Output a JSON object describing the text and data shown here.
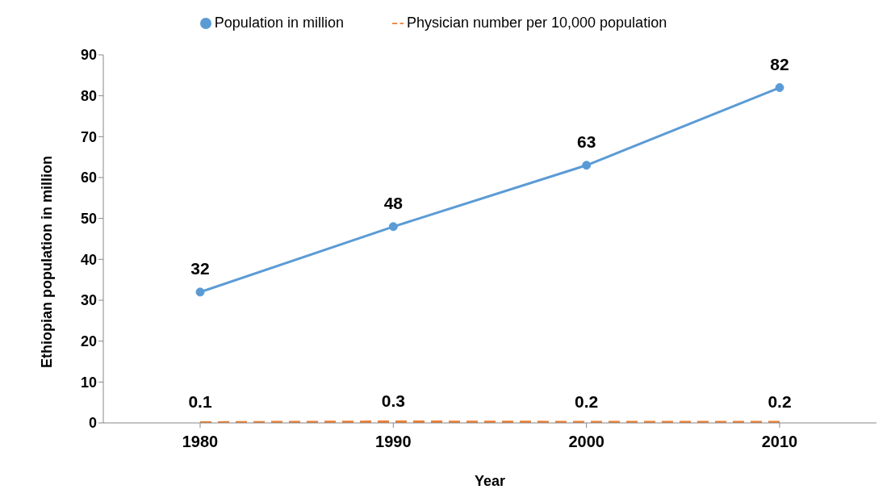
{
  "chart_data": {
    "type": "line",
    "xlabel": "Year",
    "ylabel": "Ethiopian population in million",
    "categories": [
      "1980",
      "1990",
      "2000",
      "2010"
    ],
    "series": [
      {
        "name": "Population in million",
        "color": "#5b9bd5",
        "values": [
          32,
          48,
          63,
          82
        ],
        "marker": "circle",
        "line_style": "solid"
      },
      {
        "name": "Physician number per 10,000 population",
        "color": "#ed7d31",
        "values": [
          0.1,
          0.3,
          0.2,
          0.2
        ],
        "marker": "none",
        "line_style": "dashed"
      }
    ],
    "ylim": [
      0,
      90
    ],
    "yticks": [
      0,
      10,
      20,
      30,
      40,
      50,
      60,
      70,
      80,
      90
    ],
    "grid": false,
    "legend": "top",
    "data_labels": true
  }
}
